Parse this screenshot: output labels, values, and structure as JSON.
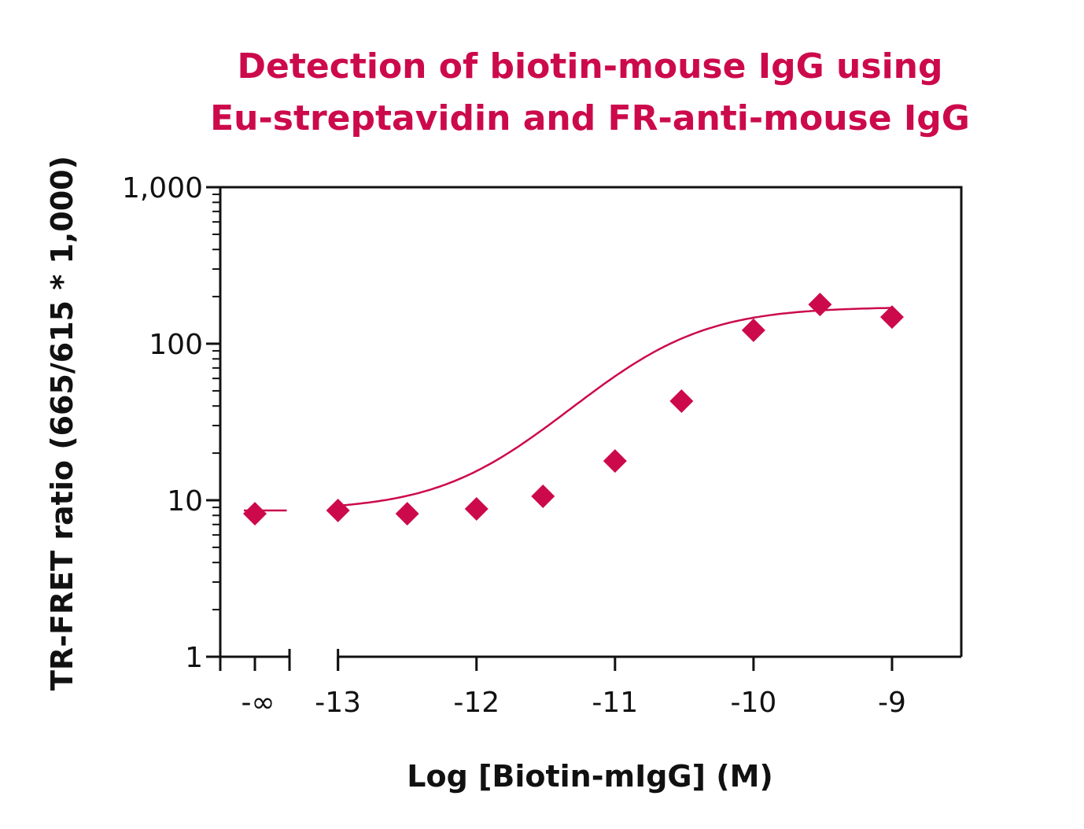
{
  "chart_data": {
    "type": "scatter",
    "title_lines": [
      "Detection of biotin-mouse IgG using",
      "Eu-streptavidin and FR-anti-mouse IgG"
    ],
    "xlabel": "Log [Biotin-mIgG] (M)",
    "ylabel": "TR-FRET ratio (665/615 * 1,000)",
    "yscale": "log",
    "ylim": [
      1,
      1000
    ],
    "xlim": [
      -13.85,
      -8.5
    ],
    "y_tick_labels": [
      "1",
      "10",
      "100",
      "1,000"
    ],
    "y_ticks": [
      1,
      10,
      100,
      1000
    ],
    "x_tick_labels": [
      "-∞",
      "-13",
      "-12",
      "-11",
      "-10",
      "-9"
    ],
    "x_ticks": [
      -13.6,
      -13,
      -12,
      -11,
      -10,
      -9
    ],
    "x_axis_break": true,
    "grid": false,
    "marker": "diamond",
    "color": "#cc0a4b",
    "points": [
      {
        "x": -13.6,
        "y": 8.2
      },
      {
        "x": -13.0,
        "y": 8.6
      },
      {
        "x": -12.5,
        "y": 8.2
      },
      {
        "x": -12.0,
        "y": 8.8
      },
      {
        "x": -11.52,
        "y": 10.6
      },
      {
        "x": -11.0,
        "y": 17.8
      },
      {
        "x": -10.52,
        "y": 43
      },
      {
        "x": -10.0,
        "y": 122
      },
      {
        "x": -9.52,
        "y": 178
      },
      {
        "x": -9.0,
        "y": 148
      }
    ],
    "fit": {
      "bottom": 8.6,
      "top": 172,
      "log_ec50": -10.7,
      "hill": 1.05
    }
  }
}
